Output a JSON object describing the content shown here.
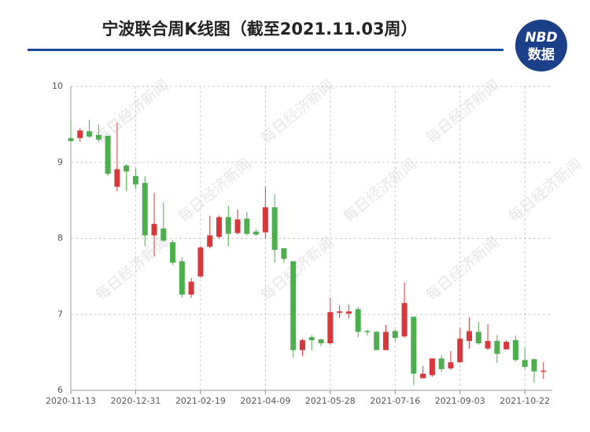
{
  "chart_data": {
    "type": "candlestick",
    "title": "宁波联合周K线图（截至2021.11.03周）",
    "logo": {
      "top": "NBD",
      "bottom": "数据"
    },
    "watermark": "每日经济新闻",
    "categories": [
      "2020-11-13",
      null,
      null,
      null,
      null,
      null,
      null,
      "2020-12-31",
      null,
      null,
      null,
      null,
      null,
      null,
      "2021-02-19",
      null,
      null,
      null,
      null,
      null,
      null,
      "2021-04-09",
      null,
      null,
      null,
      null,
      null,
      null,
      "2021-05-28",
      null,
      null,
      null,
      null,
      null,
      null,
      "2021-07-16",
      null,
      null,
      null,
      null,
      null,
      null,
      "2021-09-03",
      null,
      null,
      null,
      null,
      null,
      null,
      "2021-10-22",
      null,
      null
    ],
    "open": [
      9.32,
      9.32,
      9.41,
      9.36,
      9.35,
      8.68,
      8.96,
      8.82,
      8.73,
      8.04,
      8.13,
      7.95,
      7.7,
      7.26,
      7.5,
      7.89,
      8.02,
      8.28,
      8.07,
      8.26,
      8.09,
      8.08,
      8.41,
      7.87,
      7.7,
      6.53,
      6.7,
      6.67,
      6.62,
      7.02,
      7.01,
      7.07,
      6.78,
      6.77,
      6.53,
      6.78,
      6.71,
      6.97,
      6.16,
      6.2,
      6.42,
      6.29,
      6.37,
      6.65,
      6.77,
      6.55,
      6.65,
      6.54,
      6.66,
      6.4,
      6.41,
      6.25
    ],
    "high": [
      9.57,
      9.45,
      9.56,
      9.5,
      9.35,
      9.52,
      8.98,
      8.92,
      8.82,
      8.6,
      8.47,
      7.98,
      7.75,
      7.48,
      7.9,
      8.3,
      8.3,
      8.43,
      8.38,
      8.35,
      8.12,
      8.68,
      8.58,
      7.87,
      7.7,
      6.68,
      6.73,
      6.68,
      7.22,
      7.12,
      7.13,
      7.1,
      6.8,
      6.78,
      6.86,
      6.8,
      7.42,
      6.97,
      6.32,
      6.42,
      6.46,
      6.52,
      6.82,
      6.96,
      6.9,
      6.87,
      6.73,
      6.66,
      6.72,
      6.56,
      6.42,
      6.37
    ],
    "low": [
      9.28,
      9.27,
      9.32,
      9.27,
      8.82,
      8.62,
      8.62,
      8.65,
      7.9,
      7.76,
      7.95,
      7.65,
      7.22,
      7.22,
      7.48,
      7.87,
      8.0,
      7.9,
      8.05,
      8.04,
      8.03,
      8.0,
      7.68,
      7.68,
      6.43,
      6.45,
      6.53,
      6.58,
      6.6,
      6.95,
      6.95,
      6.7,
      6.72,
      6.53,
      6.53,
      6.65,
      6.69,
      6.07,
      6.16,
      6.18,
      6.24,
      6.27,
      6.36,
      6.55,
      6.6,
      6.53,
      6.36,
      6.54,
      6.38,
      6.28,
      6.1,
      6.15
    ],
    "close": [
      9.28,
      9.42,
      9.34,
      9.3,
      8.85,
      8.91,
      8.88,
      8.71,
      8.04,
      8.19,
      7.97,
      7.68,
      7.26,
      7.43,
      7.88,
      8.04,
      8.28,
      8.06,
      8.25,
      8.06,
      8.05,
      8.41,
      7.85,
      7.73,
      6.53,
      6.66,
      6.66,
      6.62,
      7.03,
      7.04,
      7.04,
      6.77,
      6.77,
      6.53,
      6.77,
      6.69,
      7.15,
      6.22,
      6.22,
      6.42,
      6.28,
      6.37,
      6.68,
      6.78,
      6.62,
      6.65,
      6.48,
      6.64,
      6.4,
      6.31,
      6.25,
      6.26
    ],
    "up_color": "#d9383a",
    "down_color": "#4cae4c",
    "ylim": [
      6,
      10
    ],
    "yticks": [
      6,
      7,
      8,
      9,
      10
    ],
    "grid": true
  }
}
